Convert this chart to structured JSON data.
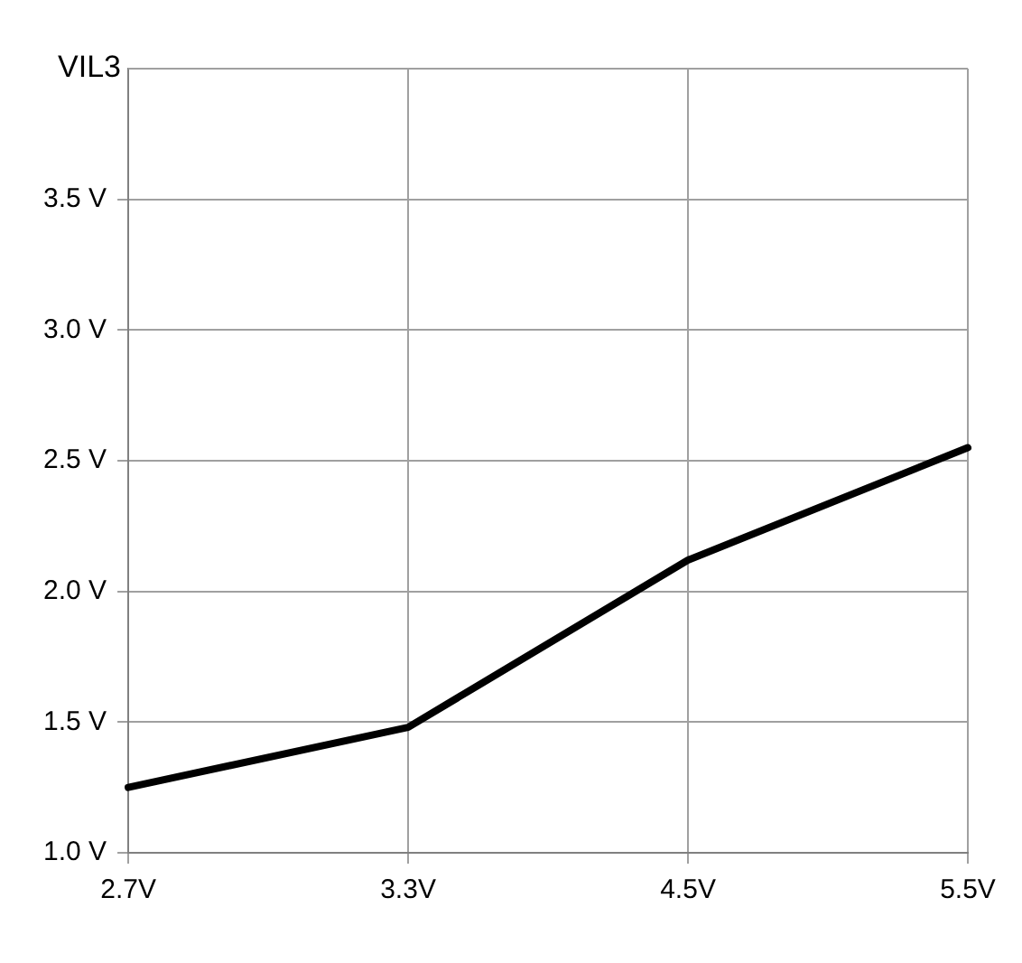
{
  "chart_data": {
    "type": "line",
    "title": "VIL3",
    "categories": [
      "2.7V",
      "3.3V",
      "4.5V",
      "5.5V"
    ],
    "series": [
      {
        "color": "#000000",
        "values": [
          1.25,
          1.48,
          2.12,
          2.55
        ]
      }
    ],
    "ylim": [
      1,
      4
    ],
    "yticks": [
      {
        "value": 1,
        "label": "1.0 V"
      },
      {
        "value": 1.5,
        "label": "1.5 V"
      },
      {
        "value": 2,
        "label": "2.0 V"
      },
      {
        "value": 2.5,
        "label": "2.5 V"
      },
      {
        "value": 3,
        "label": "3.0 V"
      },
      {
        "value": 3.5,
        "label": "3.5 V"
      }
    ],
    "grid": true,
    "legend": false,
    "marker": "none",
    "line_style": "solid"
  }
}
